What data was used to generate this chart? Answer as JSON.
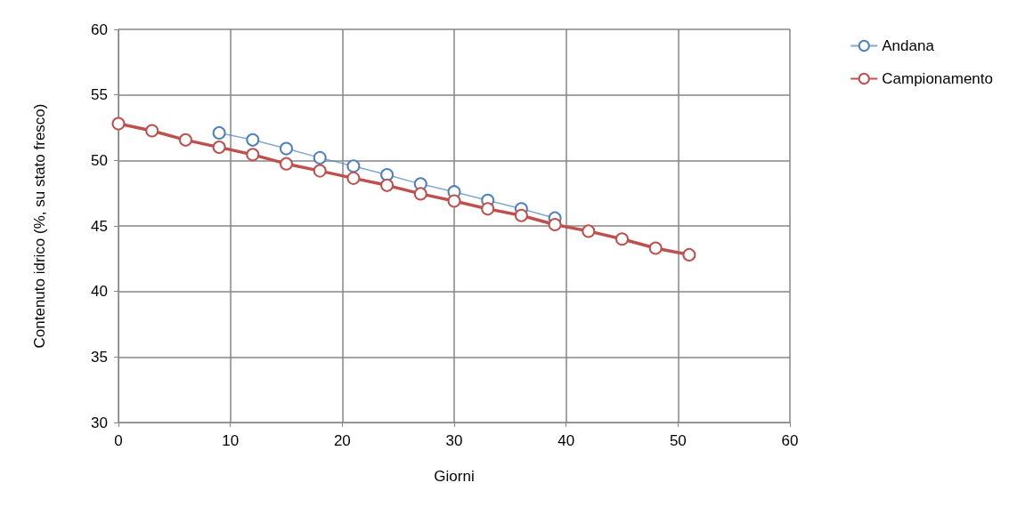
{
  "chart_data": {
    "type": "line",
    "xlabel": "Giorni",
    "ylabel": "Contenuto idrico (%, su stato fresco)",
    "xlim": [
      0,
      60
    ],
    "xticks": [
      0,
      10,
      20,
      30,
      40,
      50,
      60
    ],
    "ylim": [
      30,
      60
    ],
    "yticks": [
      30,
      35,
      40,
      45,
      50,
      55,
      60
    ],
    "grid": true,
    "legend": "top right",
    "marker": "circle",
    "line_style": "solid",
    "series": [
      {
        "name": "Andana",
        "color": "#4f81bd",
        "x": [
          9,
          12,
          15,
          18,
          21,
          24,
          27,
          30,
          33,
          36,
          39
        ],
        "values": [
          52.1,
          51.56,
          50.9,
          50.2,
          49.56,
          48.9,
          48.2,
          47.6,
          46.95,
          46.3,
          45.6
        ]
      },
      {
        "name": "Campionamento",
        "color": "#c0504d",
        "x": [
          0,
          3,
          6,
          9,
          12,
          15,
          18,
          21,
          24,
          27,
          30,
          33,
          36,
          39,
          42,
          45,
          48,
          51
        ],
        "values": [
          52.8,
          52.26,
          51.56,
          51.0,
          50.44,
          49.74,
          49.2,
          48.64,
          48.1,
          47.45,
          46.9,
          46.3,
          45.8,
          45.1,
          44.6,
          44.0,
          43.3,
          42.8
        ]
      }
    ]
  }
}
